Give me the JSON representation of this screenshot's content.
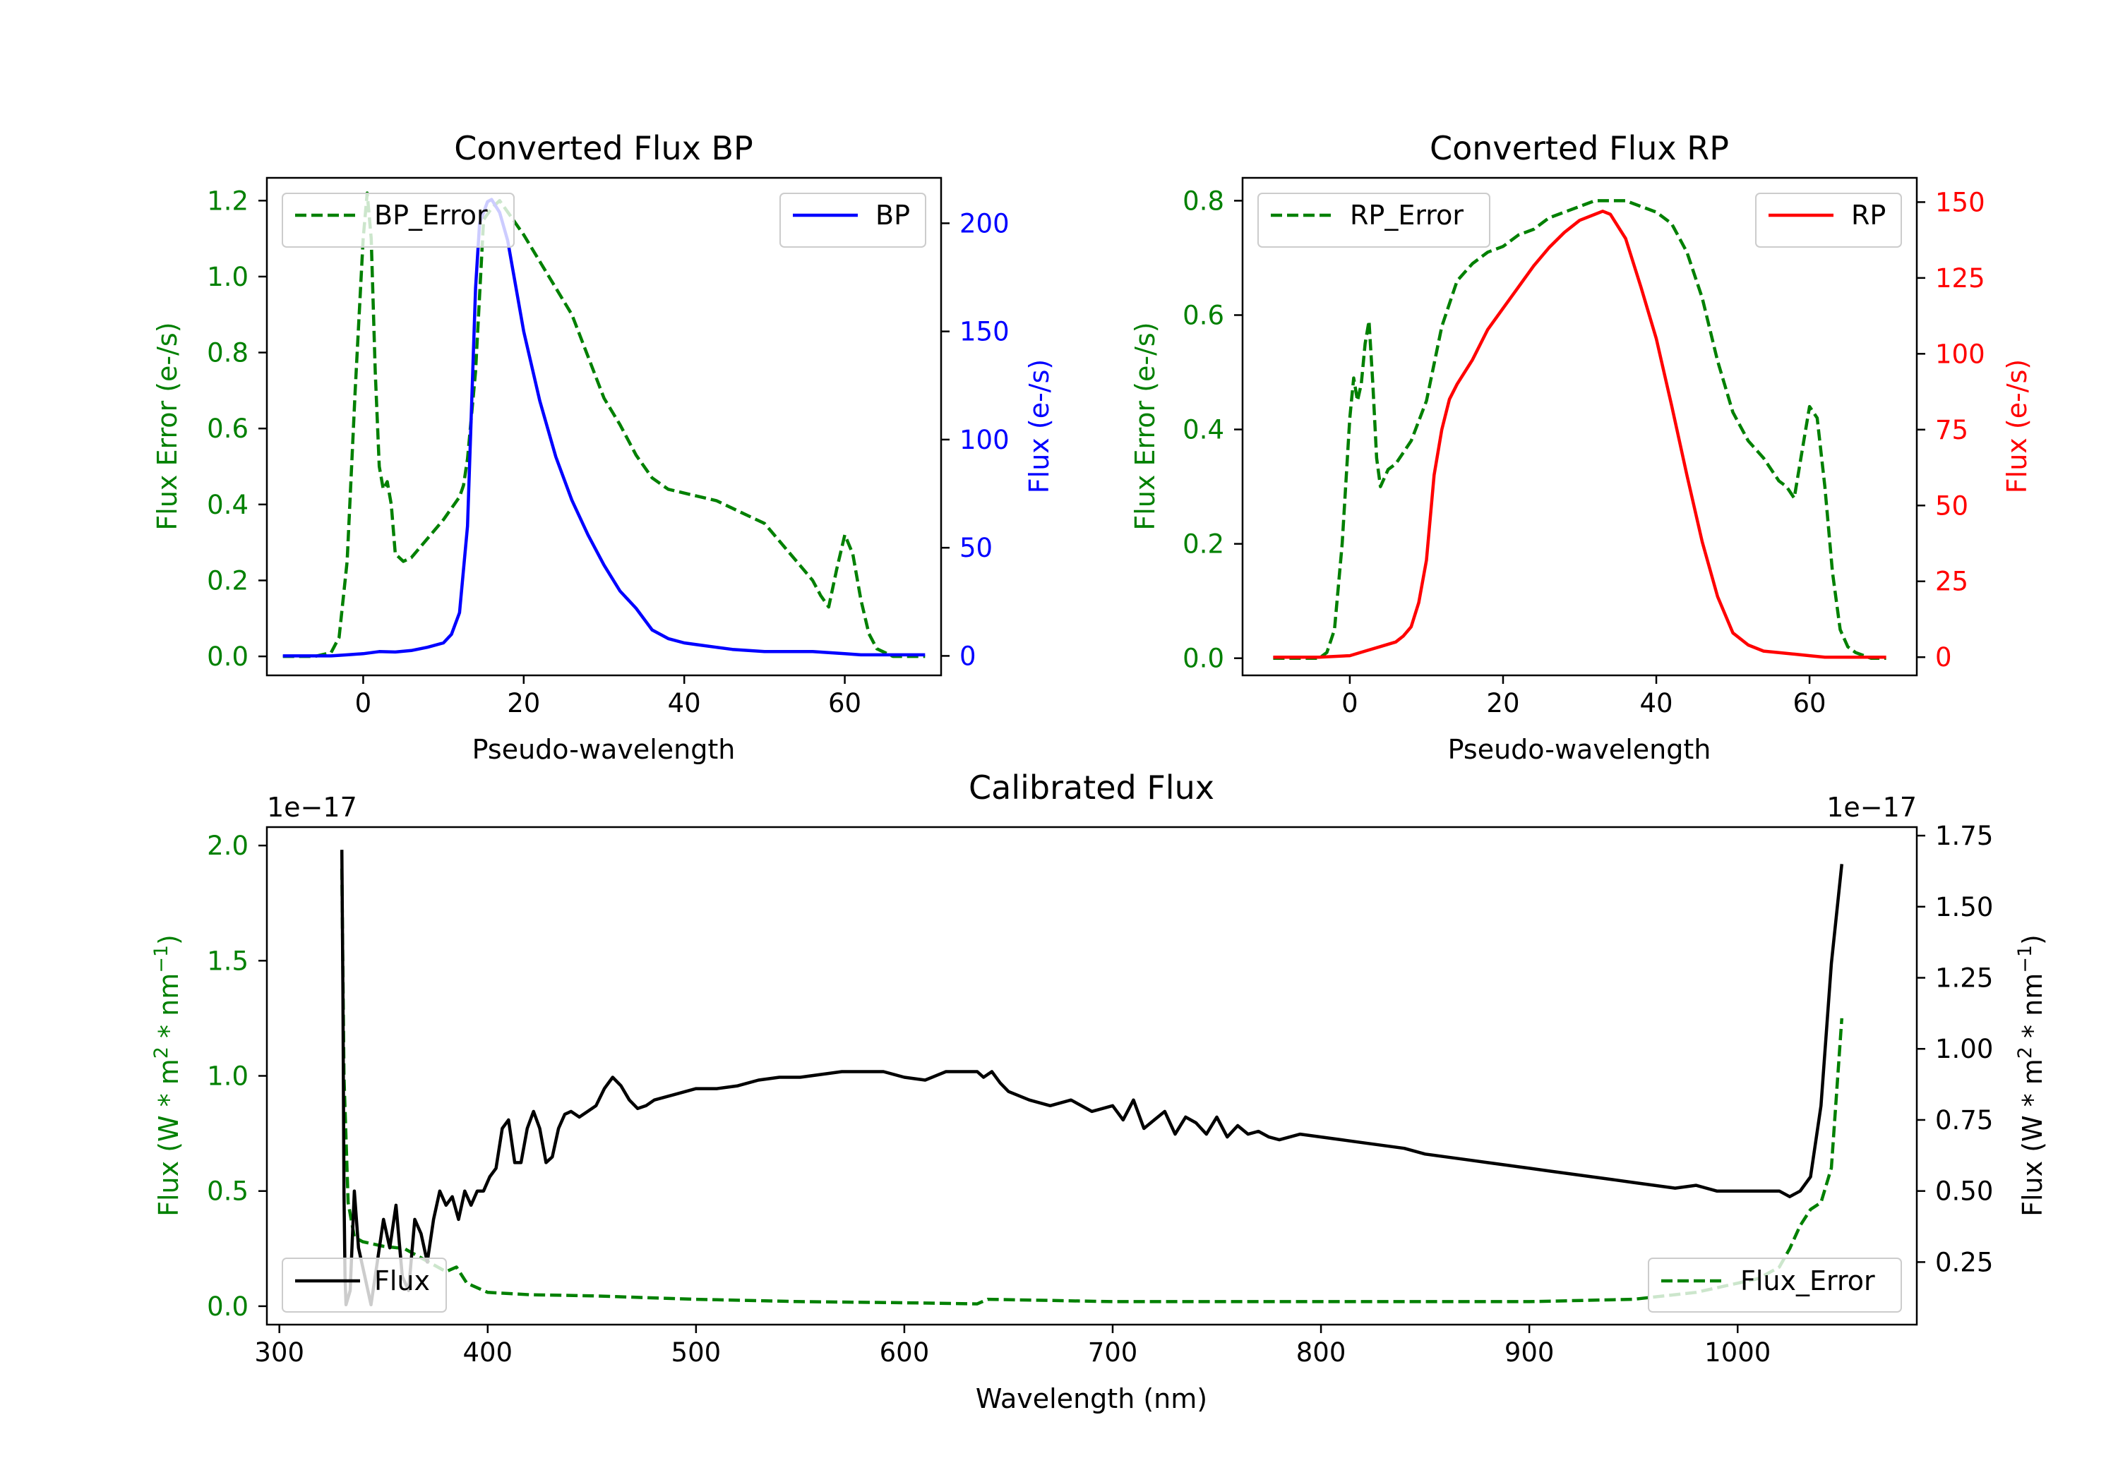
{
  "colors": {
    "bp": "#0000ff",
    "rp": "#ff0000",
    "error": "#008000",
    "flux": "#000000",
    "axis": "#000000"
  },
  "chart_data": [
    {
      "id": "bp",
      "type": "line",
      "title": "Converted Flux BP",
      "xlabel": "Pseudo-wavelength",
      "ylabel_left": "Flux Error (e-/s)",
      "ylabel_right": "Flux (e-/s)",
      "xlim": [
        -12,
        72
      ],
      "ylim_left": [
        -0.05,
        1.26
      ],
      "ylim_right": [
        -9,
        221
      ],
      "xticks": [
        0,
        20,
        40,
        60
      ],
      "xtick_labels": [
        "0",
        "20",
        "40",
        "60"
      ],
      "yticks_left": [
        0.0,
        0.2,
        0.4,
        0.6,
        0.8,
        1.0,
        1.2
      ],
      "ytick_labels_left": [
        "0.0",
        "0.2",
        "0.4",
        "0.6",
        "0.8",
        "1.0",
        "1.2"
      ],
      "yticks_right": [
        0,
        50,
        100,
        150,
        200
      ],
      "ytick_labels_right": [
        "0",
        "50",
        "100",
        "150",
        "200"
      ],
      "legend_left": "BP_Error",
      "legend_right": "BP",
      "series_error": {
        "name": "BP_Error",
        "x": [
          -10,
          -6,
          -4,
          -3,
          -2,
          -1,
          0,
          0.5,
          1,
          1.5,
          2,
          2.5,
          3,
          3.5,
          4,
          5,
          6,
          8,
          10,
          12,
          12.5,
          13,
          14,
          15,
          16,
          17,
          18,
          20,
          22,
          24,
          26,
          28,
          30,
          32,
          34,
          36,
          38,
          40,
          42,
          44,
          46,
          48,
          50,
          52,
          54,
          56,
          57,
          58,
          59,
          60,
          61,
          62,
          63,
          64,
          65,
          66,
          68,
          70
        ],
        "y": [
          0,
          0,
          0.01,
          0.05,
          0.25,
          0.7,
          1.1,
          1.22,
          1.1,
          0.75,
          0.5,
          0.44,
          0.46,
          0.4,
          0.27,
          0.25,
          0.26,
          0.31,
          0.36,
          0.42,
          0.45,
          0.52,
          0.75,
          1.15,
          1.18,
          1.2,
          1.17,
          1.11,
          1.04,
          0.97,
          0.9,
          0.79,
          0.68,
          0.61,
          0.53,
          0.47,
          0.44,
          0.43,
          0.42,
          0.41,
          0.39,
          0.37,
          0.35,
          0.3,
          0.25,
          0.2,
          0.16,
          0.13,
          0.23,
          0.32,
          0.27,
          0.15,
          0.06,
          0.02,
          0.01,
          0,
          0,
          0
        ]
      },
      "series_flux": {
        "name": "BP",
        "x": [
          -10,
          -4,
          -2,
          0,
          2,
          4,
          6,
          8,
          10,
          11,
          12,
          13,
          14,
          14.5,
          15,
          15.5,
          16,
          17,
          18,
          20,
          22,
          24,
          26,
          28,
          30,
          32,
          34,
          36,
          38,
          40,
          42,
          44,
          46,
          48,
          50,
          52,
          56,
          58,
          60,
          62,
          65,
          70
        ],
        "y": [
          0,
          0,
          0.5,
          1,
          2,
          1.8,
          2.5,
          4,
          6,
          10,
          20,
          60,
          170,
          200,
          205,
          210,
          211,
          205,
          192,
          150,
          118,
          92,
          72,
          56,
          42,
          30,
          22,
          12,
          8,
          6,
          5,
          4,
          3,
          2.5,
          2,
          2,
          2,
          1.5,
          1,
          0.5,
          0.5,
          0.5
        ]
      }
    },
    {
      "id": "rp",
      "type": "line",
      "title": "Converted Flux RP",
      "xlabel": "Pseudo-wavelength",
      "ylabel_left": "Flux Error (e-/s)",
      "ylabel_right": "Flux (e-/s)",
      "xlim": [
        -14,
        74
      ],
      "ylim_left": [
        -0.03,
        0.84
      ],
      "ylim_right": [
        -6,
        158
      ],
      "xticks": [
        0,
        20,
        40,
        60
      ],
      "xtick_labels": [
        "0",
        "20",
        "40",
        "60"
      ],
      "yticks_left": [
        0.0,
        0.2,
        0.4,
        0.6,
        0.8
      ],
      "ytick_labels_left": [
        "0.0",
        "0.2",
        "0.4",
        "0.6",
        "0.8"
      ],
      "yticks_right": [
        0,
        25,
        50,
        75,
        100,
        125,
        150
      ],
      "ytick_labels_right": [
        "0",
        "25",
        "50",
        "75",
        "100",
        "125",
        "150"
      ],
      "legend_left": "RP_Error",
      "legend_right": "RP",
      "series_error": {
        "name": "RP_Error",
        "x": [
          -10,
          -4,
          -3,
          -2,
          -1,
          0,
          0.5,
          1,
          1.5,
          2,
          2.5,
          3,
          3.5,
          4,
          5,
          6,
          8,
          10,
          12,
          14,
          16,
          18,
          20,
          22,
          24,
          26,
          28,
          30,
          32,
          34,
          36,
          38,
          40,
          42,
          44,
          46,
          48,
          50,
          52,
          54,
          55,
          56,
          57,
          58,
          59,
          60,
          61,
          62,
          63,
          64,
          65,
          66,
          68,
          70
        ],
        "y": [
          0,
          0,
          0.01,
          0.05,
          0.2,
          0.42,
          0.49,
          0.45,
          0.48,
          0.55,
          0.59,
          0.48,
          0.35,
          0.3,
          0.33,
          0.34,
          0.38,
          0.45,
          0.58,
          0.66,
          0.69,
          0.71,
          0.72,
          0.74,
          0.75,
          0.77,
          0.78,
          0.79,
          0.8,
          0.8,
          0.8,
          0.79,
          0.78,
          0.76,
          0.71,
          0.63,
          0.52,
          0.43,
          0.38,
          0.35,
          0.33,
          0.31,
          0.3,
          0.28,
          0.36,
          0.44,
          0.42,
          0.3,
          0.15,
          0.05,
          0.02,
          0.01,
          0,
          0
        ]
      },
      "series_flux": {
        "name": "RP",
        "x": [
          -10,
          -4,
          0,
          2,
          4,
          6,
          7,
          8,
          9,
          10,
          11,
          12,
          13,
          14,
          16,
          18,
          20,
          22,
          24,
          26,
          28,
          30,
          32,
          33,
          34,
          36,
          38,
          40,
          42,
          44,
          46,
          48,
          50,
          52,
          54,
          56,
          58,
          60,
          62,
          65,
          70
        ],
        "y": [
          0,
          0,
          0.5,
          2,
          3.5,
          5,
          7,
          10,
          18,
          32,
          60,
          75,
          85,
          90,
          98,
          108,
          115,
          122,
          129,
          135,
          140,
          144,
          146,
          147,
          146,
          138,
          122,
          105,
          83,
          60,
          38,
          20,
          8,
          4,
          2,
          1.5,
          1,
          0.5,
          0,
          0,
          0
        ]
      }
    },
    {
      "id": "cal",
      "type": "line",
      "title": "Calibrated Flux",
      "xlabel": "Wavelength (nm)",
      "ylabel_left": "Flux (W * m",
      "ylabel_right": "Flux (W * m",
      "ylabel_sup2": "2",
      "ylabel_mid": " * nm",
      "ylabel_sup1": "−1",
      "ylabel_end": ")",
      "offset_left": "1e−17",
      "offset_right": "1e−17",
      "xlim": [
        294,
        1086
      ],
      "ylim_left": [
        -0.08,
        2.08
      ],
      "ylim_right": [
        0.03,
        1.78
      ],
      "xticks": [
        300,
        400,
        500,
        600,
        700,
        800,
        900,
        1000
      ],
      "xtick_labels": [
        "300",
        "400",
        "500",
        "600",
        "700",
        "800",
        "900",
        "1000"
      ],
      "yticks_left": [
        0.0,
        0.5,
        1.0,
        1.5,
        2.0
      ],
      "ytick_labels_left": [
        "0.0",
        "0.5",
        "1.0",
        "1.5",
        "2.0"
      ],
      "yticks_right": [
        0.25,
        0.5,
        0.75,
        1.0,
        1.25,
        1.5,
        1.75
      ],
      "ytick_labels_right": [
        "0.25",
        "0.50",
        "0.75",
        "1.00",
        "1.25",
        "1.50",
        "1.75"
      ],
      "legend_left": "Flux",
      "legend_right": "Flux_Error",
      "series_error": {
        "name": "Flux_Error",
        "x": [
          330,
          331,
          333,
          336,
          340,
          345,
          350,
          360,
          370,
          380,
          385,
          390,
          400,
          420,
          450,
          500,
          550,
          600,
          635,
          640,
          700,
          800,
          900,
          950,
          980,
          1000,
          1010,
          1020,
          1025,
          1030,
          1035,
          1040,
          1045,
          1050
        ],
        "y": [
          1.9,
          1.0,
          0.45,
          0.3,
          0.28,
          0.27,
          0.26,
          0.25,
          0.2,
          0.15,
          0.17,
          0.1,
          0.06,
          0.05,
          0.045,
          0.03,
          0.02,
          0.015,
          0.01,
          0.03,
          0.02,
          0.02,
          0.02,
          0.03,
          0.06,
          0.1,
          0.12,
          0.17,
          0.25,
          0.35,
          0.42,
          0.45,
          0.6,
          1.25
        ]
      },
      "series_flux": {
        "name": "Flux",
        "x": [
          330,
          330.5,
          331,
          331.5,
          332,
          334,
          336,
          338,
          341,
          344,
          347,
          350,
          353,
          356,
          359,
          362,
          365,
          368,
          371,
          374,
          377,
          380,
          383,
          386,
          389,
          392,
          395,
          398,
          401,
          404,
          407,
          410,
          413,
          416,
          419,
          422,
          425,
          428,
          431,
          434,
          437,
          440,
          444,
          448,
          452,
          456,
          460,
          464,
          468,
          472,
          476,
          480,
          490,
          500,
          510,
          520,
          530,
          540,
          550,
          560,
          570,
          580,
          590,
          600,
          610,
          620,
          630,
          635,
          638,
          642,
          646,
          650,
          660,
          670,
          680,
          690,
          700,
          705,
          710,
          715,
          720,
          725,
          730,
          735,
          740,
          745,
          750,
          755,
          760,
          765,
          770,
          775,
          780,
          790,
          800,
          810,
          820,
          830,
          840,
          850,
          860,
          870,
          880,
          890,
          900,
          910,
          920,
          930,
          940,
          950,
          960,
          970,
          980,
          990,
          1000,
          1010,
          1020,
          1025,
          1030,
          1035,
          1040,
          1045,
          1050
        ],
        "y": [
          1.7,
          1.2,
          0.5,
          0.2,
          0.1,
          0.15,
          0.5,
          0.3,
          0.2,
          0.1,
          0.25,
          0.4,
          0.3,
          0.45,
          0.2,
          0.15,
          0.4,
          0.35,
          0.25,
          0.4,
          0.5,
          0.45,
          0.48,
          0.4,
          0.5,
          0.45,
          0.5,
          0.5,
          0.55,
          0.58,
          0.72,
          0.75,
          0.6,
          0.6,
          0.72,
          0.78,
          0.72,
          0.6,
          0.62,
          0.72,
          0.77,
          0.78,
          0.76,
          0.78,
          0.8,
          0.86,
          0.9,
          0.87,
          0.82,
          0.79,
          0.8,
          0.82,
          0.84,
          0.86,
          0.86,
          0.87,
          0.89,
          0.9,
          0.9,
          0.91,
          0.92,
          0.92,
          0.92,
          0.9,
          0.89,
          0.92,
          0.92,
          0.92,
          0.9,
          0.92,
          0.88,
          0.85,
          0.82,
          0.8,
          0.82,
          0.78,
          0.8,
          0.75,
          0.82,
          0.72,
          0.75,
          0.78,
          0.7,
          0.76,
          0.74,
          0.7,
          0.76,
          0.69,
          0.73,
          0.7,
          0.71,
          0.69,
          0.68,
          0.7,
          0.69,
          0.68,
          0.67,
          0.66,
          0.65,
          0.63,
          0.62,
          0.61,
          0.6,
          0.59,
          0.58,
          0.57,
          0.56,
          0.55,
          0.54,
          0.53,
          0.52,
          0.51,
          0.52,
          0.5,
          0.5,
          0.5,
          0.5,
          0.48,
          0.5,
          0.55,
          0.8,
          1.3,
          1.65
        ]
      }
    }
  ]
}
